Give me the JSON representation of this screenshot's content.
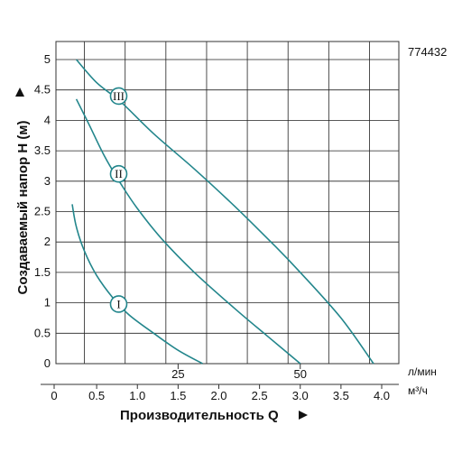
{
  "chart_data": {
    "type": "line",
    "code": "774432",
    "ylabel": "Создаваемый напор H (м)",
    "xlabel": "Производительность Q",
    "x_unit_top": "л/мин",
    "x_unit_bottom": "м³/ч",
    "ylim": [
      0,
      5
    ],
    "xlim": [
      0,
      4.0
    ],
    "y_ticks": [
      "0",
      "0.5",
      "1",
      "1.5",
      "2",
      "2.5",
      "3",
      "3.5",
      "4",
      "4.5",
      "5"
    ],
    "x_ticks_m3h": [
      "0",
      "0.5",
      "1.0",
      "1.5",
      "2.0",
      "2.5",
      "3.0",
      "3.5",
      "4.0"
    ],
    "x_ticks_lmin": [
      "25",
      "50"
    ],
    "grid": true,
    "colors": {
      "curve": "#23868c",
      "grid": "#222222",
      "frame": "#333333"
    },
    "series": [
      {
        "name": "I",
        "x": [
          0.2,
          0.25,
          0.35,
          0.5,
          0.7,
          0.9,
          1.2,
          1.5,
          1.8
        ],
        "y": [
          2.62,
          2.25,
          1.85,
          1.45,
          1.08,
          0.8,
          0.5,
          0.22,
          0.0
        ],
        "label_at": [
          0.77,
          0.98
        ]
      },
      {
        "name": "II",
        "x": [
          0.25,
          0.4,
          0.6,
          0.8,
          1.0,
          1.3,
          1.7,
          2.2,
          2.6,
          3.0
        ],
        "y": [
          4.35,
          3.95,
          3.4,
          2.95,
          2.55,
          2.05,
          1.5,
          0.9,
          0.45,
          0.0
        ],
        "label_at": [
          0.77,
          3.12
        ]
      },
      {
        "name": "III",
        "x": [
          0.25,
          0.5,
          0.8,
          1.2,
          1.7,
          2.2,
          2.7,
          3.0,
          3.5,
          3.9
        ],
        "y": [
          5.0,
          4.62,
          4.3,
          3.78,
          3.2,
          2.58,
          1.92,
          1.5,
          0.75,
          0.0
        ],
        "label_at": [
          0.77,
          4.4
        ]
      }
    ]
  }
}
